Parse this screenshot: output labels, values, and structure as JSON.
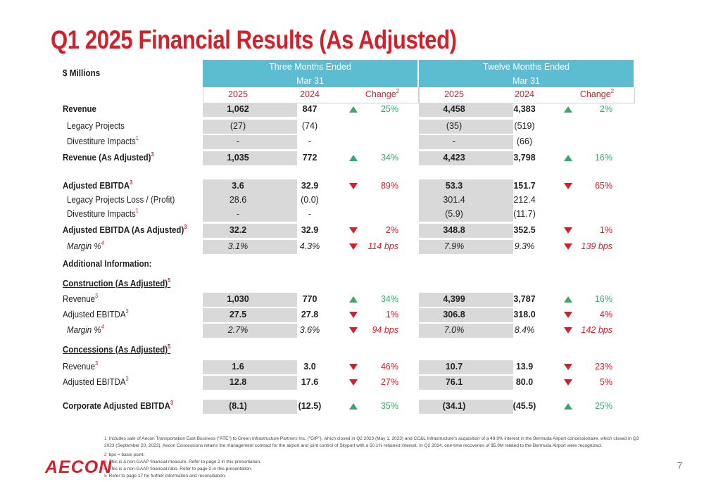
{
  "title": "Q1 2025 Financial Results (As Adjusted)",
  "units_label": "$ Millions",
  "header": {
    "three_months_l1": "Three Months Ended",
    "three_months_l2": "Mar 31",
    "twelve_months_l1": "Twelve Months Ended",
    "twelve_months_l2": "Mar 31",
    "y1": "2025",
    "y2": "2024",
    "change": "Change",
    "change_sup": "2"
  },
  "rows": [
    {
      "label": "Revenue",
      "sup": "",
      "style": "b",
      "vals": [
        "1,062",
        "847",
        "25%",
        "4,458",
        "4,383",
        "2%"
      ],
      "dir": [
        "up",
        "up"
      ],
      "vb": true
    },
    {
      "label": "Legacy Projects",
      "sup": "",
      "style": "indent",
      "vals": [
        "(27)",
        "(74)",
        "",
        "(35)",
        "(519)",
        ""
      ],
      "dir": [
        "",
        ""
      ],
      "vb": false
    },
    {
      "label": "Divestiture Impacts",
      "sup": "1",
      "style": "indent",
      "vals": [
        "-",
        "-",
        "",
        "-",
        "(66)",
        ""
      ],
      "dir": [
        "",
        ""
      ],
      "vb": false
    },
    {
      "label": "Revenue (As Adjusted)",
      "sup": "3",
      "style": "b",
      "vals": [
        "1,035",
        "772",
        "34%",
        "4,423",
        "3,798",
        "16%"
      ],
      "dir": [
        "up",
        "up"
      ],
      "vb": true
    },
    {
      "label": "Adjusted EBITDA",
      "sup": "3",
      "style": "b",
      "vals": [
        "3.6",
        "32.9",
        "89%",
        "53.3",
        "151.7",
        "65%"
      ],
      "dir": [
        "down",
        "down"
      ],
      "vb": true
    },
    {
      "label": "Legacy Projects Loss / (Profit)",
      "sup": "",
      "style": "indent",
      "vals": [
        "28.6",
        "(0.0)",
        "",
        "301.4",
        "212.4",
        ""
      ],
      "dir": [
        "",
        ""
      ],
      "vb": false
    },
    {
      "label": "Divestiture Impacts",
      "sup": "1",
      "style": "indent",
      "vals": [
        "-",
        "-",
        "",
        "(5.9)",
        "(11.7)",
        ""
      ],
      "dir": [
        "",
        ""
      ],
      "vb": false
    },
    {
      "label": "Adjusted EBITDA (As Adjusted)",
      "sup": "3",
      "style": "b",
      "vals": [
        "32.2",
        "32.9",
        "2%",
        "348.8",
        "352.5",
        "1%"
      ],
      "dir": [
        "down",
        "down"
      ],
      "vb": true
    },
    {
      "label": "Margin %",
      "sup": "4",
      "style": "i",
      "vals": [
        "3.1%",
        "4.3%",
        "114 bps",
        "7.9%",
        "9.3%",
        "139 bps"
      ],
      "dir": [
        "down",
        "down"
      ],
      "vb": false
    },
    {
      "label": "Additional Information:",
      "sup": "",
      "style": "b",
      "vals": [
        "",
        "",
        "",
        "",
        "",
        ""
      ],
      "dir": [
        "",
        ""
      ],
      "vb": false
    },
    {
      "label": "Construction (As Adjusted)",
      "sup": "5",
      "style": "bu",
      "vals": [
        "",
        "",
        "",
        "",
        "",
        ""
      ],
      "dir": [
        "",
        ""
      ],
      "vb": false
    },
    {
      "label": "Revenue",
      "sup": "3",
      "style": "plain",
      "vals": [
        "1,030",
        "770",
        "34%",
        "4,399",
        "3,787",
        "16%"
      ],
      "dir": [
        "up",
        "up"
      ],
      "vb": true
    },
    {
      "label": "Adjusted EBITDA",
      "sup": "3",
      "style": "plain",
      "vals": [
        "27.5",
        "27.8",
        "1%",
        "306.8",
        "318.0",
        "4%"
      ],
      "dir": [
        "down",
        "down"
      ],
      "vb": true
    },
    {
      "label": "Margin %",
      "sup": "4",
      "style": "i",
      "vals": [
        "2.7%",
        "3.6%",
        "94 bps",
        "7.0%",
        "8.4%",
        "142 bps"
      ],
      "dir": [
        "down",
        "down"
      ],
      "vb": false
    },
    {
      "label": "Concessions (As Adjusted)",
      "sup": "5",
      "style": "bu",
      "vals": [
        "",
        "",
        "",
        "",
        "",
        ""
      ],
      "dir": [
        "",
        ""
      ],
      "vb": false
    },
    {
      "label": "Revenue",
      "sup": "3",
      "style": "plain",
      "vals": [
        "1.6",
        "3.0",
        "46%",
        "10.7",
        "13.9",
        "23%"
      ],
      "dir": [
        "down",
        "down"
      ],
      "vb": true
    },
    {
      "label": "Adjusted EBITDA",
      "sup": "3",
      "style": "plain",
      "vals": [
        "12.8",
        "17.6",
        "27%",
        "76.1",
        "80.0",
        "5%"
      ],
      "dir": [
        "down",
        "down"
      ],
      "vb": true
    },
    {
      "label": "Corporate Adjusted EBITDA",
      "sup": "3",
      "style": "b",
      "vals": [
        "(8.1)",
        "(12.5)",
        "35%",
        "(34.1)",
        "(45.5)",
        "25%"
      ],
      "dir": [
        "up",
        "up"
      ],
      "vb": true
    }
  ],
  "footnotes": [
    {
      "n": "1",
      "text": "Includes sale of Aecon Transportation East Business (\"ATE\") to Green Infrastructure Partners Inc. (\"GIP\"), which closed in Q2 2023 (May 1, 2023) and CC&L Infrastructure's acquisition of a 49.9% interest in the Bermuda Airport concessionaire, which closed in Q3 2023 (September 20, 2023).  Aecon Concessions retains the management contract for the airport and joint control of Skyport with a 50.1% retained interest. In Q2 2024, one-time recoveries of $5.9M related to the Bermuda Airport were recognized."
    },
    {
      "n": "2",
      "text": "bps = basis point."
    },
    {
      "n": "3",
      "text": "This is a non-GAAP financial measure. Refer to page 2 in this presentation."
    },
    {
      "n": "4",
      "text": "This is a non-GAAP financial ratio. Refer to page 2 in this presentation."
    },
    {
      "n": "5",
      "text": "Refer to page 17 for further information and reconciliation."
    }
  ],
  "logo_text": "AECON",
  "page_number": "7",
  "colors": {
    "brand_red": "#d4202a",
    "header_blue": "#5bbcd2",
    "up_green": "#3aa86b",
    "shade_gray": "#d9d9d9"
  }
}
